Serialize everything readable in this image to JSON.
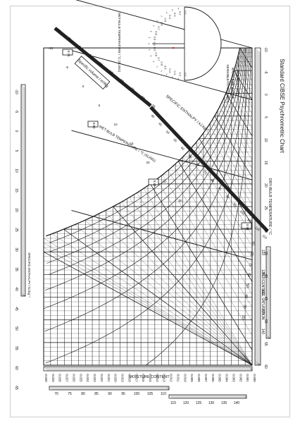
{
  "title": "Standard CIBSE Psychrometric Chart",
  "axes": {
    "dry_bulb_label": "DRY-BULB TEMPERATURE / °C",
    "moisture_content_label": "MOISTURE CONTENT",
    "enthalpy_left_label": "SPECIFIC ENTHALPY / kJ.kg⁻¹",
    "enthalpy_top_label": "SPECIFIC ENTHALPY / kJ.kg⁻¹",
    "wet_bulb_label": "WET-BULB TEMPERATURE / °C (SLING)",
    "wet_bulb_top_label": "WET-BULB TEMPERATURE / °C (SLING)",
    "specific_volume_label": "Specific volume / m³/kg",
    "percentage_saturation_label": "PERCENTAGE SATURATION"
  },
  "protractor": {
    "caption_lines": [
      "SENSIBLE/TOTAL HEAT",
      "RATIO FOR WATER",
      "ADDED AT 30°C"
    ],
    "ticks": [
      "0.1",
      "0.2",
      "0.3",
      "0.4",
      "0.5",
      "0.6",
      "0.7",
      "0.8",
      "0.9",
      "1.0",
      "0.9",
      "0.8",
      "0.7",
      "0.6",
      "0.5",
      "0.4",
      "0.3",
      "0.2",
      "0.1"
    ]
  },
  "dry_bulb_ticks": [
    "-10",
    "-5",
    "0",
    "5",
    "10",
    "15",
    "20",
    "25",
    "30",
    "35",
    "40",
    "45",
    "50",
    "55",
    "60"
  ],
  "moisture_ticks": [
    "0.000",
    "0.001",
    "0.002",
    "0.003",
    "0.004",
    "0.005",
    "0.006",
    "0.007",
    "0.008",
    "0.009",
    "0.010",
    "0.011",
    "0.012",
    "0.013",
    "0.014",
    "0.015",
    "0.016",
    "0.017",
    "0.018",
    "0.019",
    "0.020",
    "0.021",
    "0.022",
    "0.023",
    "0.024",
    "0.025",
    "0.026",
    "0.027",
    "0.028",
    "0.029",
    "0.030"
  ],
  "enthalpy_left_ticks": [
    "-10",
    "-5",
    "0",
    "5",
    "10",
    "15",
    "20",
    "25",
    "30",
    "35",
    "40",
    "45",
    "50",
    "55",
    "60",
    "65"
  ],
  "enthalpy_bottom_ticks": [
    "70",
    "75",
    "80",
    "85",
    "90",
    "95",
    "100",
    "105",
    "110",
    "115",
    "120",
    "125",
    "130",
    "135",
    "140"
  ],
  "enthalpy_right_ticks": [
    "120",
    "125",
    "130",
    "135",
    "140"
  ],
  "enthalpy_top_ticks": [
    "40",
    "45",
    "50",
    "55",
    "60",
    "65",
    "70",
    "75",
    "80",
    "85",
    "90",
    "95",
    "100",
    "105",
    "110",
    "115"
  ],
  "wet_bulb_top_ticks": [
    "-10",
    "-5",
    "0",
    "5",
    "10",
    "15",
    "20",
    "25",
    "30",
    "35"
  ],
  "wet_bulb_curve_ticks": [
    "-10",
    "-5",
    "0",
    "5",
    "10",
    "15",
    "20",
    "25",
    "30"
  ],
  "percentage_saturation_ticks": [
    "90",
    "80",
    "70",
    "60",
    "50",
    "40",
    "30",
    "20"
  ],
  "specific_volume_boxes": [
    "0.75",
    "0.80",
    "0.85",
    "0.90"
  ]
}
